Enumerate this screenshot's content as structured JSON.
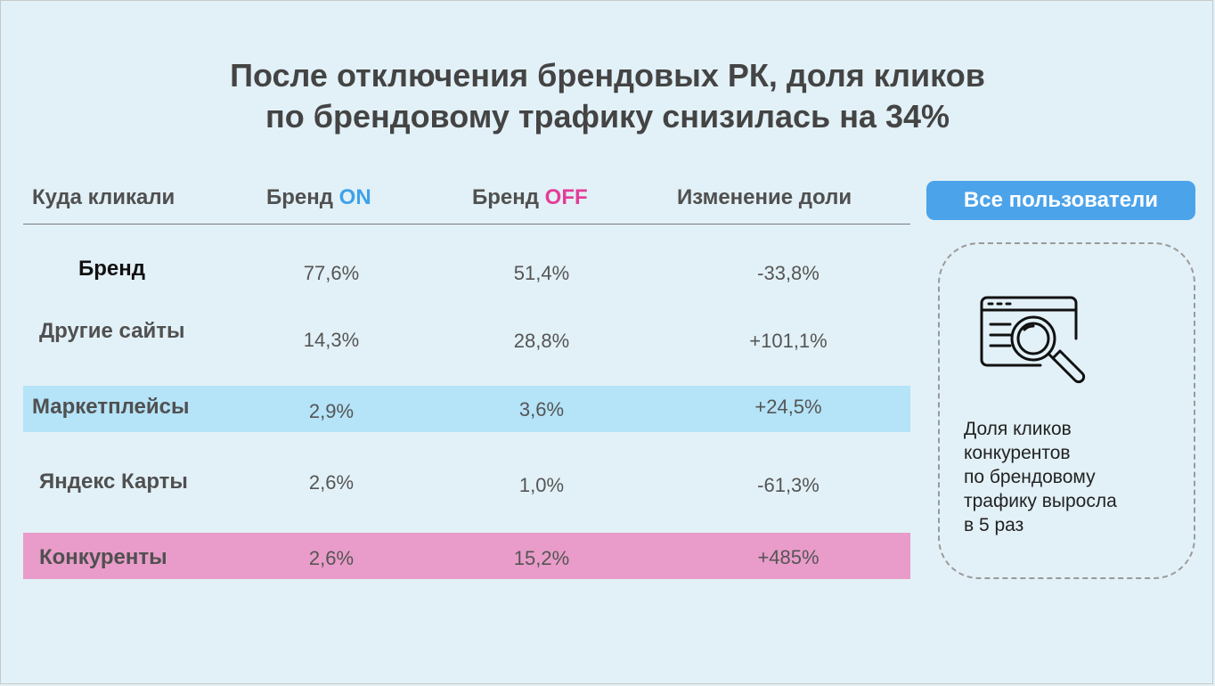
{
  "title": {
    "line1": "После отключения брендовых РК, доля кликов",
    "line2": "по брендовому трафику снизилась на 34%"
  },
  "table": {
    "headers": {
      "where": "Куда кликали",
      "on_prefix": "Бренд ",
      "on_word": "ON",
      "off_prefix": "Бренд ",
      "off_word": "OFF",
      "change": "Изменение доли"
    },
    "rows": [
      {
        "label": "Бренд",
        "on": "77,6%",
        "off": "51,4%",
        "change": "-33,8%"
      },
      {
        "label": "Другие сайты",
        "on": "14,3%",
        "off": "28,8%",
        "change": "+101,1%"
      },
      {
        "label": "Маркетплейсы",
        "on": "2,9%",
        "off": "3,6%",
        "change": "+24,5%"
      },
      {
        "label": "Яндекс Карты",
        "on": "2,6%",
        "off": "1,0%",
        "change": "-61,3%"
      },
      {
        "label": "Конкуренты",
        "on": "2,6%",
        "off": "15,2%",
        "change": "+485%"
      }
    ]
  },
  "sidebar": {
    "pill_label": "Все пользователи",
    "icon": "browser-search-icon",
    "note_lines": [
      "Доля кликов",
      "конкурентов",
      "по брендовому",
      "трафику выросла",
      "в 5 раз"
    ]
  },
  "colors": {
    "background": "#e2f1f7",
    "on_accent": "#3ea1ea",
    "off_accent": "#e43d97",
    "highlight_blue": "#b5e3f8",
    "highlight_pink": "#e99cc9",
    "pill": "#4ba3ea"
  }
}
